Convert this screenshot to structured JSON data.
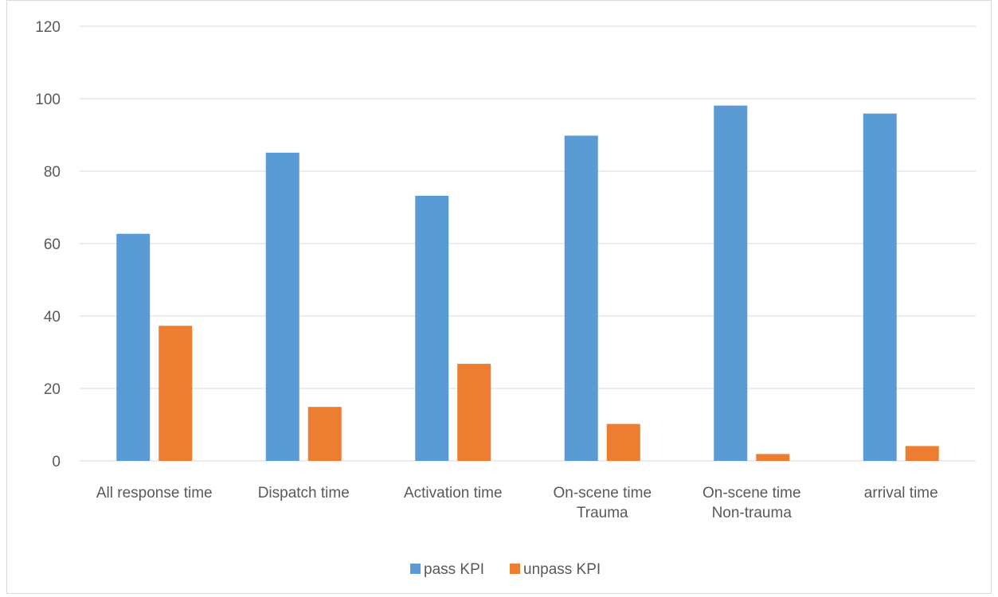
{
  "chart_data": {
    "type": "bar",
    "title": "",
    "xlabel": "",
    "ylabel": "",
    "ylim": [
      0,
      120
    ],
    "yticks": [
      0,
      20,
      40,
      60,
      80,
      100,
      120
    ],
    "grid": "horizontal",
    "legend_position": "bottom",
    "categories": [
      [
        "All response time"
      ],
      [
        "Dispatch time"
      ],
      [
        "Activation time"
      ],
      [
        "On-scene time",
        "Trauma"
      ],
      [
        "On-scene time",
        "Non-trauma"
      ],
      [
        "arrival time"
      ]
    ],
    "series": [
      {
        "name": "pass KPI",
        "color": "#5b9bd5",
        "values": [
          62.7,
          85.1,
          73.2,
          89.8,
          98.1,
          95.9
        ]
      },
      {
        "name": "unpass KPI",
        "color": "#ed7d31",
        "values": [
          37.3,
          14.9,
          26.8,
          10.2,
          1.9,
          4.1
        ]
      }
    ]
  }
}
